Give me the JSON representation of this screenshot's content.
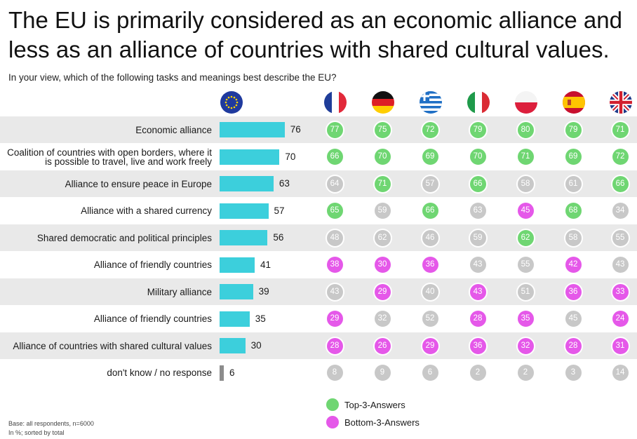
{
  "title": "The EU is primarily considered as an economic alliance and less as an alliance of countries with shared cultural values.",
  "subtitle": "In your view, which of the following tasks and meanings best describe the EU?",
  "columns": [
    {
      "flag": "eu-flag-icon"
    },
    {
      "flag": "france-flag-icon"
    },
    {
      "flag": "germany-flag-icon"
    },
    {
      "flag": "greece-flag-icon"
    },
    {
      "flag": "italy-flag-icon"
    },
    {
      "flag": "poland-flag-icon"
    },
    {
      "flag": "spain-flag-icon"
    },
    {
      "flag": "uk-flag-icon"
    }
  ],
  "colors": {
    "bar": "#3ccfdc",
    "bar_dont_know": "#8c8c8c",
    "top3": "#6fd672",
    "bottom3": "#e558e9",
    "neutral": "#c8c8c8",
    "row_shade": "#e9e9e9"
  },
  "chart_data": {
    "type": "bar",
    "orientation": "horizontal",
    "categories": [
      "Economic alliance",
      "Coalition of countries with open borders, where it is possible to travel, live and work freely",
      "Alliance to ensure peace in Europe",
      "Alliance with a shared currency",
      "Shared democratic and political principles",
      "Alliance of friendly countries",
      "Military alliance",
      "Alliance of friendly countries",
      "Alliance of countries with shared cultural values",
      "don't know / no response"
    ],
    "values": [
      76,
      70,
      63,
      57,
      56,
      41,
      39,
      35,
      30,
      6
    ],
    "xlim": [
      0,
      100
    ],
    "country_values": [
      [
        77,
        75,
        72,
        79,
        80,
        79,
        71
      ],
      [
        66,
        70,
        69,
        70,
        71,
        69,
        72
      ],
      [
        64,
        71,
        57,
        66,
        58,
        61,
        66
      ],
      [
        65,
        59,
        66,
        63,
        45,
        68,
        34
      ],
      [
        48,
        62,
        46,
        59,
        62,
        58,
        55
      ],
      [
        38,
        30,
        36,
        43,
        55,
        42,
        43
      ],
      [
        43,
        29,
        40,
        43,
        51,
        36,
        33
      ],
      [
        29,
        32,
        52,
        28,
        35,
        45,
        24
      ],
      [
        28,
        26,
        29,
        36,
        32,
        28,
        31
      ],
      [
        8,
        9,
        6,
        2,
        2,
        3,
        14
      ]
    ],
    "country_marks": [
      [
        "top",
        "top",
        "top",
        "top",
        "top",
        "top",
        "top"
      ],
      [
        "top",
        "top",
        "top",
        "top",
        "top",
        "top",
        "top"
      ],
      [
        "none",
        "top",
        "none",
        "top",
        "none",
        "none",
        "top"
      ],
      [
        "top",
        "none",
        "top",
        "none",
        "bottom",
        "top",
        "none"
      ],
      [
        "none",
        "none",
        "none",
        "none",
        "top",
        "none",
        "none"
      ],
      [
        "bottom",
        "bottom",
        "bottom",
        "none",
        "none",
        "bottom",
        "none"
      ],
      [
        "none",
        "bottom",
        "none",
        "bottom",
        "none",
        "bottom",
        "bottom"
      ],
      [
        "bottom",
        "none",
        "none",
        "bottom",
        "bottom",
        "none",
        "bottom"
      ],
      [
        "bottom",
        "bottom",
        "bottom",
        "bottom",
        "bottom",
        "bottom",
        "bottom"
      ],
      [
        "none",
        "none",
        "none",
        "none",
        "none",
        "none",
        "none"
      ]
    ]
  },
  "legend": {
    "top3": "Top-3-Answers",
    "bottom3": "Bottom-3-Answers"
  },
  "footnote": {
    "base": "Base: all respondents, n=6000",
    "note": "In %; sorted by total"
  }
}
